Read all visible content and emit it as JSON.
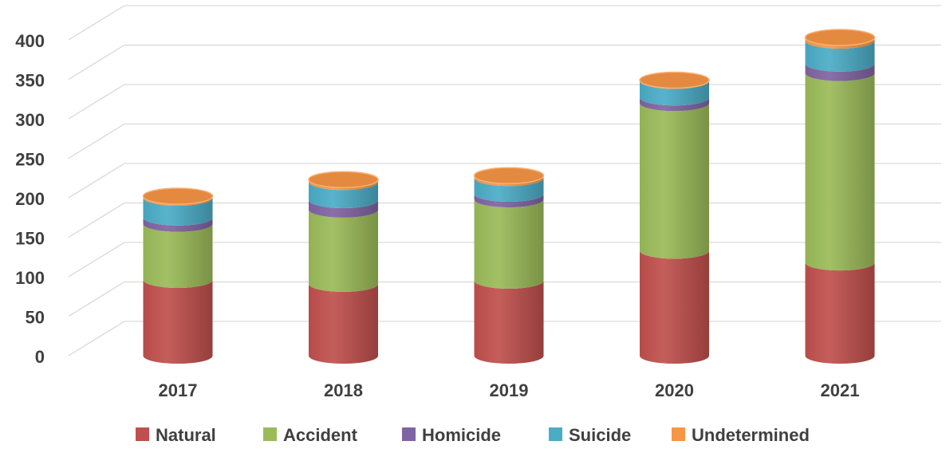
{
  "chart_data": {
    "type": "bar",
    "stacked": true,
    "style": "3d-cylinder",
    "title": "",
    "xlabel": "",
    "ylabel": "",
    "ylim": [
      0,
      400
    ],
    "yticks": [
      0,
      50,
      100,
      150,
      200,
      250,
      300,
      350,
      400
    ],
    "grid": true,
    "legend_position": "bottom",
    "categories": [
      "2017",
      "2018",
      "2019",
      "2020",
      "2021"
    ],
    "series": [
      {
        "name": "Natural",
        "color": "#c0504d",
        "values": [
          96,
          91,
          95,
          133,
          118
        ]
      },
      {
        "name": "Accident",
        "color": "#9bbb59",
        "values": [
          71,
          94,
          103,
          187,
          240
        ]
      },
      {
        "name": "Homicide",
        "color": "#8064a2",
        "values": [
          8,
          12,
          7,
          7,
          12
        ]
      },
      {
        "name": "Suicide",
        "color": "#4bacc6",
        "values": [
          25,
          23,
          20,
          21,
          29
        ]
      },
      {
        "name": "Undetermined",
        "color": "#f79646",
        "values": [
          2,
          3,
          3,
          1,
          4
        ]
      }
    ]
  }
}
